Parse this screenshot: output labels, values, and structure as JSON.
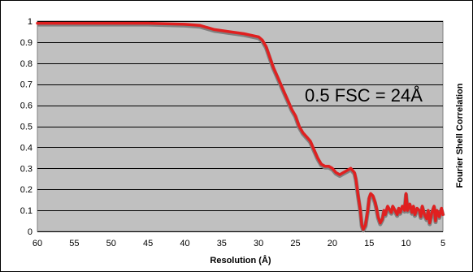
{
  "chart_data": {
    "type": "line",
    "title": "",
    "xlabel": "Resolution (Å)",
    "ylabel": "Fourier Shell Correlation",
    "xlim": [
      60,
      5
    ],
    "ylim": [
      0,
      1
    ],
    "x_ticks": [
      60,
      55,
      50,
      45,
      40,
      35,
      30,
      25,
      20,
      15,
      10,
      5
    ],
    "y_ticks": [
      0,
      0.1,
      0.2,
      0.3,
      0.4,
      0.5,
      0.6,
      0.7,
      0.8,
      0.9,
      1
    ],
    "x_tick_labels": [
      "60",
      "55",
      "50",
      "45",
      "40",
      "35",
      "30",
      "25",
      "20",
      "15",
      "10",
      "5"
    ],
    "y_tick_labels": [
      "0",
      "0.1",
      "0.2",
      "0.3",
      "0.4",
      "0.5",
      "0.6",
      "0.7",
      "0.8",
      "0.9",
      "1"
    ],
    "grid": true,
    "annotation": "0.5 FSC = 24Å",
    "colors": {
      "plot_background": "#c0c0c0",
      "curve": "#e02020",
      "curve_shadow": "#808080"
    },
    "series": [
      {
        "x": [
          60,
          55,
          50,
          45,
          40,
          38,
          36,
          34,
          32,
          30,
          29.5,
          29,
          28.5,
          28,
          27.5,
          27,
          26.5,
          26,
          25.5,
          25,
          24.5,
          24,
          23.5,
          23,
          22.5,
          22,
          21.5,
          21,
          20.5,
          20,
          19.5,
          19,
          18.5,
          18,
          17.5,
          17,
          16.8,
          16.5,
          16.2,
          16,
          15.8,
          15.5,
          15.2,
          15,
          14.8,
          14.5,
          14.2,
          14,
          13.8,
          13.5,
          13.2,
          13,
          12.8,
          12.5,
          12.2,
          12,
          11.8,
          11.5,
          11.2,
          11,
          10.8,
          10.5,
          10.2,
          10,
          9.8,
          9.5,
          9.2,
          9,
          8.8,
          8.5,
          8.2,
          8,
          7.8,
          7.5,
          7.2,
          7,
          6.8,
          6.5,
          6.2,
          6,
          5.8,
          5.5,
          5.2,
          5
        ],
        "y": [
          0.99,
          0.99,
          0.99,
          0.99,
          0.985,
          0.98,
          0.96,
          0.95,
          0.94,
          0.925,
          0.91,
          0.88,
          0.83,
          0.78,
          0.74,
          0.7,
          0.66,
          0.62,
          0.58,
          0.55,
          0.5,
          0.47,
          0.45,
          0.43,
          0.39,
          0.35,
          0.32,
          0.31,
          0.31,
          0.3,
          0.28,
          0.27,
          0.28,
          0.29,
          0.3,
          0.28,
          0.25,
          0.17,
          0.1,
          0.03,
          0.01,
          0.03,
          0.1,
          0.16,
          0.18,
          0.17,
          0.14,
          0.11,
          0.07,
          0.04,
          0.06,
          0.1,
          0.08,
          0.12,
          0.1,
          0.09,
          0.12,
          0.1,
          0.08,
          0.11,
          0.09,
          0.12,
          0.1,
          0.18,
          0.1,
          0.13,
          0.09,
          0.12,
          0.08,
          0.11,
          0.1,
          0.07,
          0.12,
          0.08,
          0.06,
          0.1,
          0.04,
          0.09,
          0.12,
          0.05,
          0.1,
          0.07,
          0.11,
          0.08
        ]
      }
    ]
  }
}
